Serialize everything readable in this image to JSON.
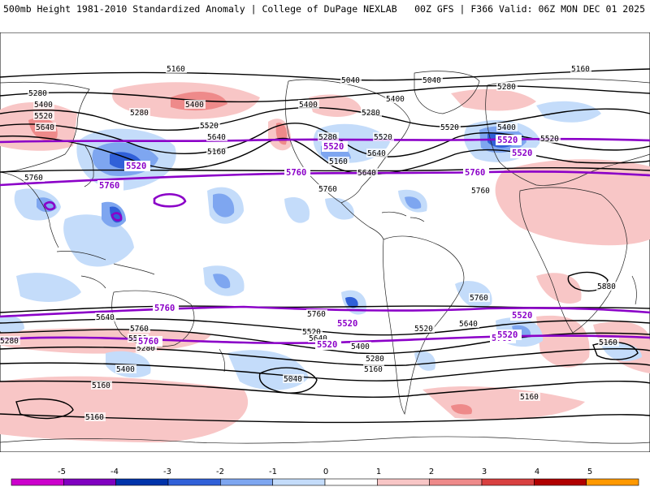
{
  "header": {
    "title": "500mb Height 1981-2010 Standardized Anomaly | College of DuPage NEXLAB",
    "run_info": "00Z GFS | F366 Valid: 06Z MON DEC 01 2025"
  },
  "colorbar": {
    "ticks": [
      "-5",
      "-4",
      "-3",
      "-2",
      "-1",
      "0",
      "1",
      "2",
      "3",
      "4",
      "5"
    ],
    "colors": [
      "#cc00cc",
      "#8000c0",
      "#0033aa",
      "#3060d8",
      "#7ea6f0",
      "#c4dcfa",
      "#ffffff",
      "#f8c6c6",
      "#ee8a8a",
      "#d84040",
      "#b00000",
      "#ff9900"
    ]
  },
  "contour_labels": [
    "5160",
    "5040",
    "5280",
    "5400",
    "5520",
    "5640",
    "5760",
    "5280",
    "5400",
    "5520",
    "5640",
    "5160",
    "5280",
    "5400",
    "5520",
    "5640",
    "5760",
    "5400",
    "5280",
    "5160",
    "5040",
    "5520",
    "5640",
    "5760",
    "5520",
    "5400",
    "5160",
    "5280",
    "5880",
    "5760",
    "5640",
    "5520",
    "5400",
    "5280",
    "5160",
    "5040",
    "5520",
    "5640",
    "5760",
    "5280",
    "5160",
    "5160",
    "5160",
    "5280",
    "5400",
    "5520",
    "5640",
    "5760",
    "5160"
  ],
  "highlight_labels": [
    "5520",
    "5760",
    "5520",
    "5760",
    "5760",
    "5520",
    "5760",
    "5520",
    "5520",
    "5760",
    "5520",
    "5760",
    "5520",
    "5520"
  ],
  "colors": {
    "height_contour": "#000000",
    "highlight_contour": "#8b00c8",
    "coast": "#222222"
  }
}
